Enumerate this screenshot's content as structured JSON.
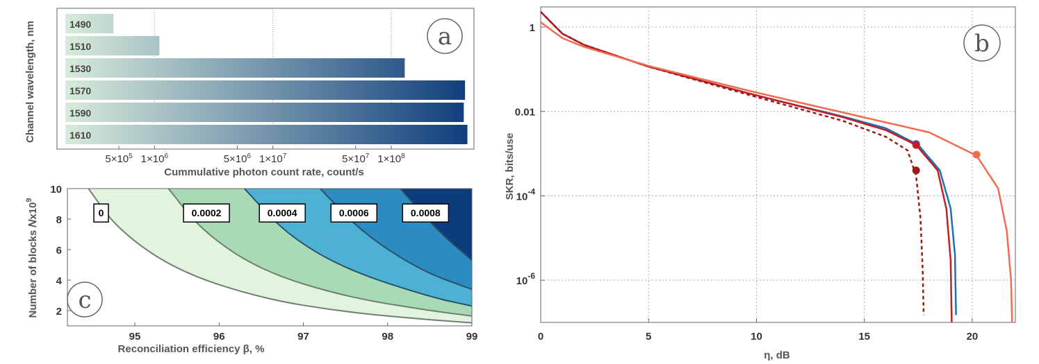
{
  "panels": {
    "a": "a",
    "b": "b",
    "c": "c"
  },
  "chart_data": [
    {
      "id": "a",
      "type": "bar",
      "orientation": "horizontal",
      "x_scale": "log",
      "categories": [
        "1490",
        "1510",
        "1530",
        "1570",
        "1590",
        "1610"
      ],
      "values": [
        450000,
        1100000,
        130000000,
        420000000,
        410000000,
        440000000
      ],
      "xlabel": "Cummulative photon count rate, count/s",
      "ylabel": "Channel wavelength, nm",
      "xticks": [
        {
          "v": 500000,
          "label": "5×10"
        },
        {
          "v": 1000000,
          "label": "1×10"
        },
        {
          "v": 5000000,
          "label": "5×10"
        },
        {
          "v": 10000000,
          "label": "1×10"
        },
        {
          "v": 50000000,
          "label": "5×10"
        },
        {
          "v": 100000000,
          "label": "1×10"
        }
      ],
      "xtick_exponents": [
        "5",
        "6",
        "6",
        "7",
        "7",
        "8"
      ],
      "xlim": [
        150000,
        500000000
      ],
      "color_gradient": [
        "#dcefdc",
        "#0d3c7c"
      ]
    },
    {
      "id": "b",
      "type": "line",
      "y_scale": "log",
      "xlabel": "η, dB",
      "ylabel": "SKR, bits/use",
      "xlim": [
        0,
        22
      ],
      "ylim": [
        1e-07,
        3
      ],
      "xticks": [
        0,
        5,
        10,
        15,
        20
      ],
      "xtick_labels": [
        "0",
        "5",
        "10",
        "15",
        "20"
      ],
      "yticks": [
        {
          "v": 1,
          "label": "1"
        },
        {
          "v": 0.01,
          "label": "0.01"
        },
        {
          "v": 0.0001,
          "label": "10",
          "exp": "-4"
        },
        {
          "v": 1e-06,
          "label": "10",
          "exp": "-6"
        }
      ],
      "grid": true,
      "series": [
        {
          "color": "#1f6fb4",
          "dash": false,
          "x": [
            0,
            1,
            2,
            5,
            10,
            14,
            16,
            17.5,
            18.5,
            19.0,
            19.2,
            19.25
          ],
          "y": [
            2.3,
            0.7,
            0.38,
            0.115,
            0.024,
            0.0076,
            0.004,
            0.0016,
            0.0004,
            5e-05,
            4e-06,
            1.5e-07
          ],
          "marker": {
            "x": 17.4,
            "y": 0.0017
          }
        },
        {
          "color": "#c41e24",
          "dash": false,
          "x": [
            0,
            1,
            2,
            5,
            10,
            14,
            16,
            17.4,
            18.4,
            18.8,
            19.0,
            19.05
          ],
          "y": [
            2.3,
            0.7,
            0.38,
            0.115,
            0.024,
            0.0073,
            0.0036,
            0.0016,
            0.0004,
            5e-05,
            3e-06,
            1e-07
          ],
          "marker": {
            "x": 17.4,
            "y": 0.0016
          }
        },
        {
          "color": "#9b1b1b",
          "dash": true,
          "x": [
            0,
            1,
            2,
            5,
            10,
            14,
            16,
            17,
            17.4,
            17.6,
            17.7,
            17.75
          ],
          "y": [
            2.3,
            0.7,
            0.38,
            0.115,
            0.022,
            0.006,
            0.0025,
            0.0012,
            0.0003,
            3e-05,
            2e-06,
            1.5e-07
          ],
          "marker": {
            "x": 17.4,
            "y": 0.0004
          }
        },
        {
          "color": "#f26b4f",
          "dash": false,
          "x": [
            0,
            1,
            2,
            5,
            10,
            15,
            18,
            20.2,
            21.2,
            21.6,
            21.8,
            21.85
          ],
          "y": [
            1.3,
            0.55,
            0.34,
            0.12,
            0.028,
            0.0072,
            0.0032,
            0.0009,
            0.00015,
            1.5e-05,
            1e-06,
            1e-07
          ],
          "marker": {
            "x": 20.2,
            "y": 0.00095
          }
        }
      ]
    },
    {
      "id": "c",
      "type": "contour",
      "xlabel": "Reconciliation efficiency β, %",
      "ylabel": "Number of blocks 𝑁x10",
      "ylabel_exp": "9",
      "xlim": [
        94.2,
        99
      ],
      "ylim": [
        1,
        10
      ],
      "xticks": [
        95,
        96,
        97,
        98,
        99
      ],
      "xtick_labels": [
        "95",
        "96",
        "97",
        "98",
        "99"
      ],
      "yticks": [
        2,
        4,
        6,
        8,
        10
      ],
      "ytick_labels": [
        "2",
        "4",
        "6",
        "8",
        "10"
      ],
      "levels": [
        {
          "label": "0",
          "fill": "#e2f4dd",
          "curve_x": [
            94.45,
            94.8,
            95.5,
            96.5,
            97.5,
            98.5,
            99
          ],
          "curve_y": [
            10,
            7.3,
            4.6,
            2.8,
            1.9,
            1.4,
            1.2
          ]
        },
        {
          "label": "0.0002",
          "fill": "#a8dbb5",
          "curve_x": [
            95.4,
            95.8,
            96.5,
            97.5,
            98.5,
            99
          ],
          "curve_y": [
            10,
            7.2,
            4.6,
            2.9,
            2.0,
            1.65
          ]
        },
        {
          "label": "0.0004",
          "fill": "#4db1d4",
          "curve_x": [
            96.3,
            96.8,
            97.5,
            98.5,
            99
          ],
          "curve_y": [
            10,
            7.0,
            4.7,
            2.9,
            2.3
          ]
        },
        {
          "label": "0.0006",
          "fill": "#2a8cc0",
          "curve_x": [
            97.2,
            97.7,
            98.4,
            99
          ],
          "curve_y": [
            10,
            7.1,
            4.6,
            3.4
          ]
        },
        {
          "label": "0.0008",
          "fill": "#0c3c7c",
          "curve_x": [
            98.15,
            98.6,
            99
          ],
          "curve_y": [
            10,
            7.2,
            5.3
          ]
        }
      ],
      "base_fill": "#ffffff",
      "label_positions_y": [
        8.4,
        8.4,
        8.4,
        8.4,
        8.4
      ],
      "label_positions_x": [
        94.6,
        95.85,
        96.75,
        97.6,
        98.45
      ]
    }
  ]
}
